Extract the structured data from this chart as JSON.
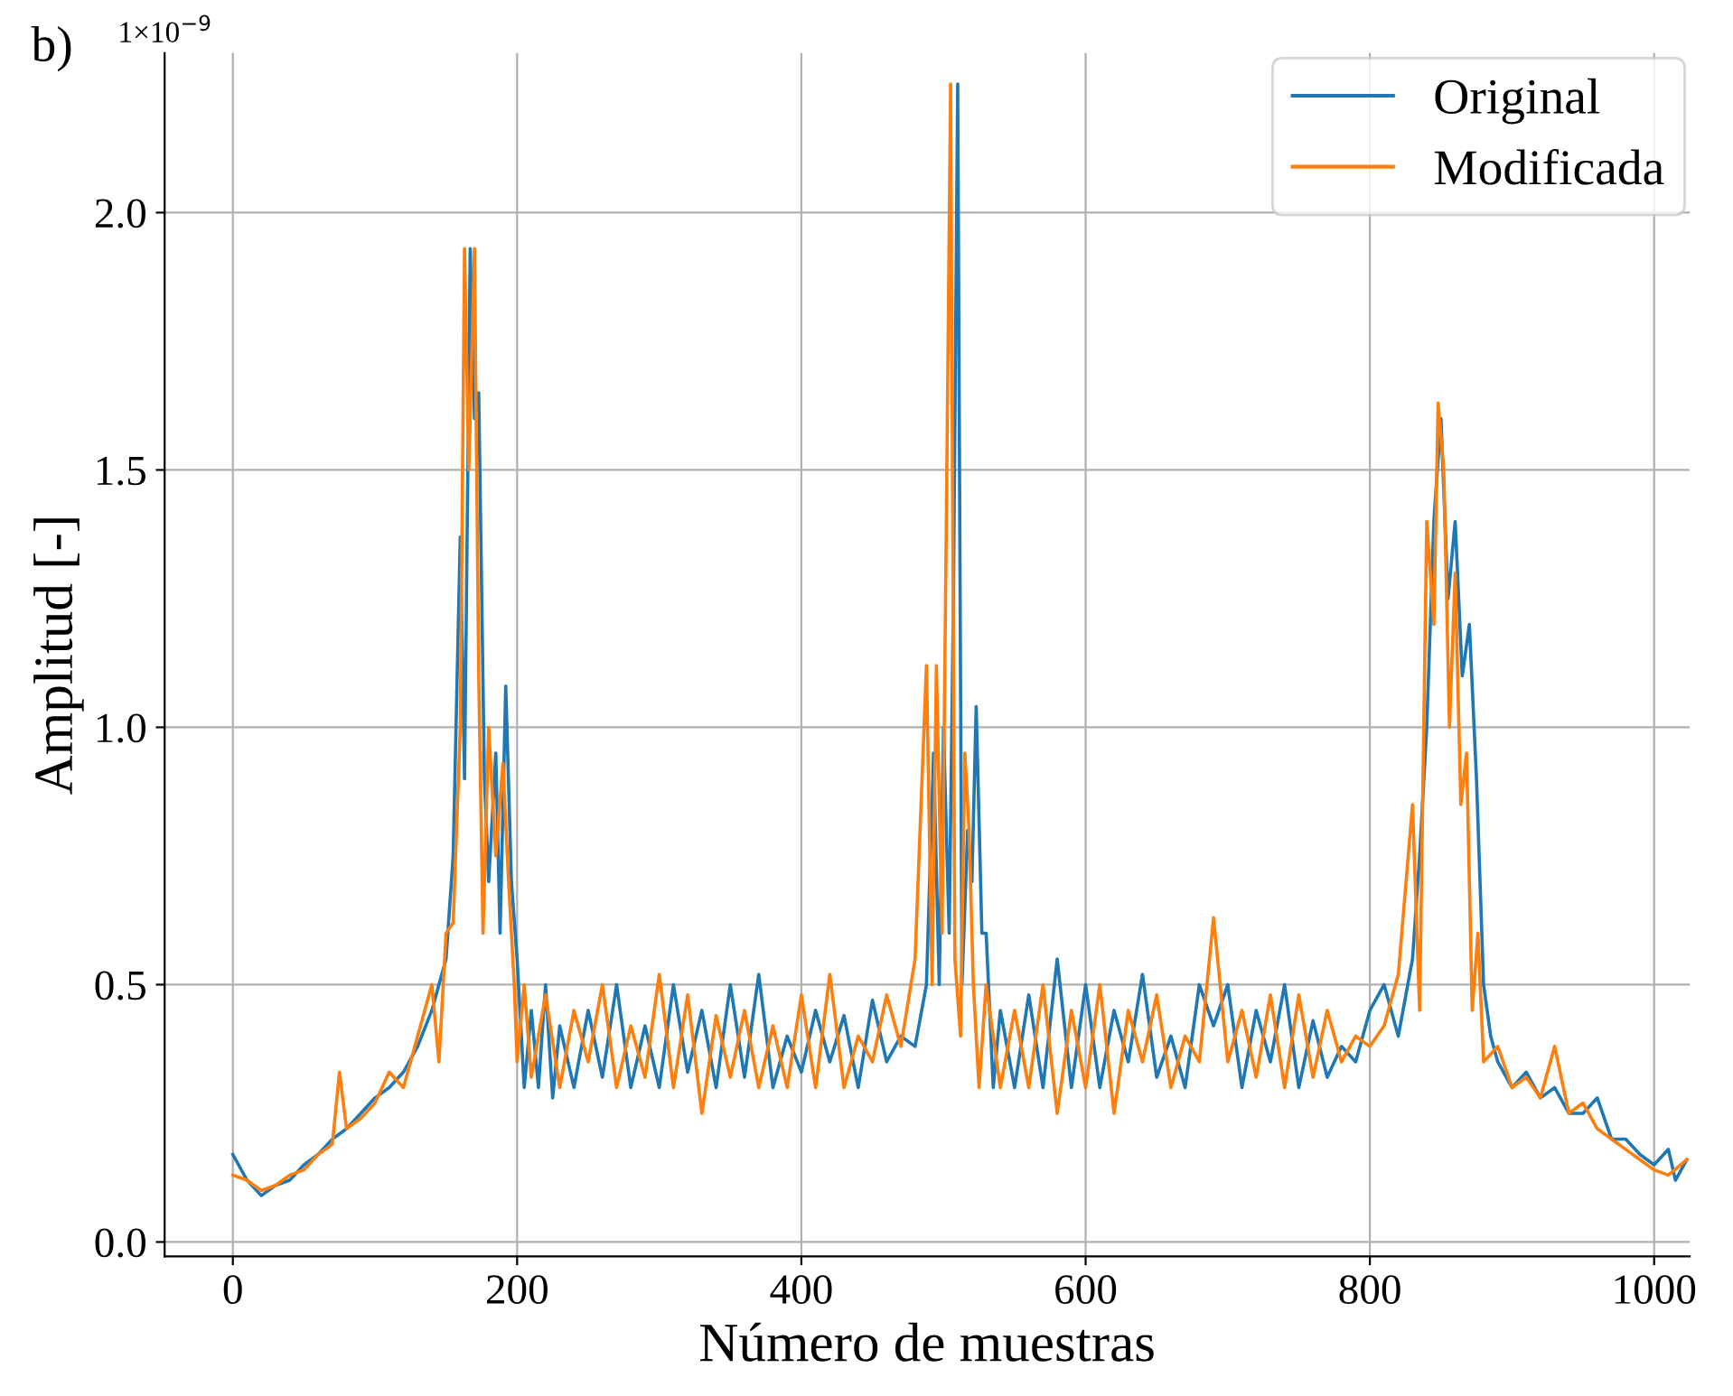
{
  "chart_data": {
    "type": "line",
    "xlabel": "Número de muestras",
    "ylabel": "Amplitud [-]",
    "annotations": [
      "b)",
      "1×10$^{−9}$"
    ],
    "xlim": [
      -48,
      1025
    ],
    "xticks": [
      0,
      200,
      400,
      600,
      800,
      1000
    ],
    "ylim": [
      -0.028,
      2.31
    ],
    "yticks": [
      {
        "value": 0,
        "label": "0.0"
      },
      0.5,
      {
        "value": 1,
        "label": "1.0"
      },
      1.5,
      {
        "value": 2,
        "label": "2.0"
      }
    ],
    "grid": true,
    "legend": "top right",
    "line_style": "solid",
    "marker": "none",
    "series": [
      {
        "name": "Original",
        "color": "#1f77b4",
        "x": [
          0,
          10,
          20,
          30,
          40,
          50,
          60,
          70,
          80,
          90,
          100,
          110,
          120,
          130,
          140,
          150,
          155,
          160,
          163,
          167,
          170,
          173,
          177,
          180,
          185,
          188,
          192,
          196,
          200,
          205,
          210,
          215,
          220,
          225,
          230,
          240,
          250,
          260,
          270,
          280,
          290,
          300,
          310,
          320,
          330,
          340,
          350,
          360,
          370,
          380,
          390,
          400,
          410,
          420,
          430,
          440,
          450,
          460,
          470,
          480,
          488,
          493,
          497,
          500,
          504,
          507,
          510,
          513,
          517,
          520,
          523,
          527,
          530,
          535,
          540,
          550,
          560,
          570,
          580,
          590,
          600,
          610,
          620,
          630,
          640,
          650,
          660,
          670,
          680,
          690,
          700,
          710,
          720,
          730,
          740,
          750,
          760,
          770,
          780,
          790,
          800,
          810,
          820,
          830,
          835,
          840,
          845,
          850,
          855,
          860,
          865,
          870,
          875,
          880,
          885,
          890,
          900,
          910,
          920,
          930,
          940,
          950,
          960,
          970,
          980,
          990,
          1000,
          1010,
          1015,
          1023
        ],
        "values": [
          0.17,
          0.12,
          0.09,
          0.11,
          0.12,
          0.15,
          0.17,
          0.2,
          0.22,
          0.25,
          0.28,
          0.3,
          0.33,
          0.38,
          0.45,
          0.55,
          0.75,
          1.37,
          0.9,
          1.93,
          1.6,
          1.65,
          0.9,
          0.7,
          0.95,
          0.6,
          1.08,
          0.7,
          0.55,
          0.3,
          0.45,
          0.3,
          0.5,
          0.28,
          0.42,
          0.3,
          0.45,
          0.32,
          0.5,
          0.3,
          0.42,
          0.3,
          0.5,
          0.33,
          0.45,
          0.3,
          0.5,
          0.32,
          0.52,
          0.3,
          0.4,
          0.33,
          0.45,
          0.35,
          0.44,
          0.3,
          0.47,
          0.35,
          0.4,
          0.38,
          0.5,
          0.95,
          0.5,
          1.0,
          0.6,
          1.25,
          2.25,
          0.5,
          0.8,
          0.7,
          1.04,
          0.6,
          0.6,
          0.3,
          0.45,
          0.3,
          0.48,
          0.3,
          0.55,
          0.3,
          0.5,
          0.3,
          0.45,
          0.35,
          0.52,
          0.32,
          0.4,
          0.3,
          0.5,
          0.42,
          0.5,
          0.3,
          0.45,
          0.35,
          0.5,
          0.3,
          0.43,
          0.32,
          0.38,
          0.35,
          0.45,
          0.5,
          0.4,
          0.55,
          0.75,
          1.0,
          1.4,
          1.6,
          1.25,
          1.4,
          1.1,
          1.2,
          0.9,
          0.5,
          0.4,
          0.35,
          0.3,
          0.33,
          0.28,
          0.3,
          0.25,
          0.25,
          0.28,
          0.2,
          0.2,
          0.17,
          0.15,
          0.18,
          0.12,
          0.16
        ]
      },
      {
        "name": "Modificada",
        "color": "#ff7f0e",
        "x": [
          0,
          10,
          20,
          30,
          40,
          50,
          60,
          70,
          75,
          80,
          90,
          100,
          110,
          120,
          130,
          140,
          145,
          150,
          155,
          160,
          163,
          166,
          170,
          173,
          176,
          180,
          185,
          190,
          194,
          198,
          200,
          205,
          210,
          220,
          230,
          240,
          250,
          260,
          270,
          280,
          290,
          300,
          310,
          320,
          330,
          340,
          350,
          360,
          370,
          380,
          390,
          400,
          410,
          420,
          430,
          440,
          450,
          460,
          470,
          480,
          488,
          492,
          495,
          499,
          502,
          505,
          508,
          512,
          515,
          518,
          521,
          525,
          530,
          540,
          550,
          560,
          570,
          580,
          590,
          600,
          610,
          620,
          630,
          640,
          650,
          660,
          670,
          680,
          690,
          700,
          710,
          720,
          730,
          740,
          750,
          760,
          770,
          780,
          790,
          800,
          810,
          820,
          830,
          835,
          840,
          845,
          848,
          852,
          856,
          860,
          864,
          868,
          872,
          876,
          880,
          890,
          900,
          910,
          920,
          930,
          940,
          950,
          960,
          970,
          980,
          990,
          1000,
          1010,
          1023
        ],
        "values": [
          0.13,
          0.12,
          0.1,
          0.11,
          0.13,
          0.14,
          0.17,
          0.19,
          0.33,
          0.22,
          0.24,
          0.27,
          0.33,
          0.3,
          0.4,
          0.5,
          0.35,
          0.6,
          0.62,
          1.0,
          1.93,
          1.5,
          1.93,
          1.1,
          0.6,
          1.0,
          0.75,
          0.93,
          0.7,
          0.5,
          0.35,
          0.5,
          0.32,
          0.48,
          0.3,
          0.45,
          0.35,
          0.5,
          0.3,
          0.42,
          0.32,
          0.52,
          0.3,
          0.48,
          0.25,
          0.44,
          0.32,
          0.45,
          0.3,
          0.42,
          0.3,
          0.48,
          0.3,
          0.52,
          0.3,
          0.4,
          0.35,
          0.48,
          0.38,
          0.55,
          1.12,
          0.5,
          1.12,
          0.6,
          1.4,
          2.25,
          0.55,
          0.4,
          0.95,
          0.8,
          0.5,
          0.3,
          0.5,
          0.3,
          0.45,
          0.3,
          0.5,
          0.25,
          0.45,
          0.3,
          0.5,
          0.25,
          0.45,
          0.35,
          0.48,
          0.3,
          0.4,
          0.35,
          0.63,
          0.35,
          0.45,
          0.32,
          0.48,
          0.3,
          0.48,
          0.32,
          0.45,
          0.35,
          0.4,
          0.38,
          0.42,
          0.52,
          0.85,
          0.45,
          1.4,
          1.2,
          1.63,
          1.5,
          1.0,
          1.3,
          0.85,
          0.95,
          0.45,
          0.6,
          0.35,
          0.38,
          0.3,
          0.32,
          0.28,
          0.38,
          0.25,
          0.27,
          0.22,
          0.2,
          0.18,
          0.16,
          0.14,
          0.13,
          0.16
        ]
      }
    ]
  }
}
